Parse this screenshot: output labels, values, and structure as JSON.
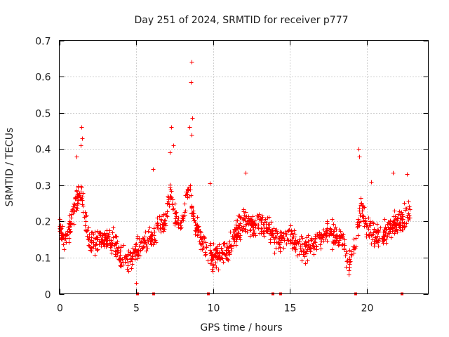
{
  "chart_data": {
    "type": "scatter",
    "title": "Day 251 of 2024, SRMTID for receiver p777",
    "xlabel": "GPS time / hours",
    "ylabel": "SRMTID / TECUs",
    "xlim": [
      0,
      24
    ],
    "ylim": [
      0,
      0.7
    ],
    "xticks": [
      0,
      5,
      10,
      15,
      20
    ],
    "xtick_labels": [
      "0",
      "5",
      "10",
      "15",
      "20"
    ],
    "yticks": [
      0,
      0.1,
      0.2,
      0.3,
      0.4,
      0.5,
      0.6,
      0.7
    ],
    "ytick_labels": [
      "0",
      "0.1",
      "0.2",
      "0.3",
      "0.4",
      "0.5",
      "0.6",
      "0.7"
    ],
    "grid": true,
    "marker": "+",
    "color": "#ff0000",
    "series": [
      {
        "name": "SRMTID",
        "trend": [
          [
            0.0,
            0.19
          ],
          [
            0.3,
            0.15
          ],
          [
            0.6,
            0.17
          ],
          [
            1.0,
            0.25
          ],
          [
            1.4,
            0.28
          ],
          [
            1.7,
            0.2
          ],
          [
            2.0,
            0.14
          ],
          [
            2.5,
            0.15
          ],
          [
            3.0,
            0.15
          ],
          [
            3.5,
            0.14
          ],
          [
            4.0,
            0.11
          ],
          [
            4.4,
            0.09
          ],
          [
            4.8,
            0.11
          ],
          [
            5.2,
            0.13
          ],
          [
            5.8,
            0.15
          ],
          [
            6.3,
            0.17
          ],
          [
            6.8,
            0.19
          ],
          [
            7.2,
            0.28
          ],
          [
            7.6,
            0.2
          ],
          [
            8.0,
            0.2
          ],
          [
            8.4,
            0.3
          ],
          [
            8.8,
            0.2
          ],
          [
            9.2,
            0.15
          ],
          [
            9.6,
            0.11
          ],
          [
            10.0,
            0.1
          ],
          [
            10.5,
            0.11
          ],
          [
            11.0,
            0.12
          ],
          [
            11.5,
            0.17
          ],
          [
            12.0,
            0.2
          ],
          [
            12.5,
            0.19
          ],
          [
            13.0,
            0.19
          ],
          [
            13.5,
            0.18
          ],
          [
            14.0,
            0.16
          ],
          [
            14.5,
            0.15
          ],
          [
            15.0,
            0.16
          ],
          [
            15.5,
            0.14
          ],
          [
            16.0,
            0.12
          ],
          [
            16.5,
            0.14
          ],
          [
            17.0,
            0.16
          ],
          [
            17.5,
            0.17
          ],
          [
            18.0,
            0.17
          ],
          [
            18.5,
            0.14
          ],
          [
            18.8,
            0.08
          ],
          [
            19.2,
            0.14
          ],
          [
            19.6,
            0.24
          ],
          [
            20.0,
            0.18
          ],
          [
            20.5,
            0.16
          ],
          [
            21.0,
            0.16
          ],
          [
            21.5,
            0.19
          ],
          [
            22.0,
            0.2
          ],
          [
            22.5,
            0.21
          ],
          [
            22.8,
            0.22
          ]
        ],
        "spikes": [
          [
            1.45,
            0.46
          ],
          [
            1.5,
            0.43
          ],
          [
            1.4,
            0.41
          ],
          [
            1.1,
            0.38
          ],
          [
            7.3,
            0.46
          ],
          [
            7.4,
            0.41
          ],
          [
            7.2,
            0.39
          ],
          [
            8.58,
            0.64
          ],
          [
            8.55,
            0.585
          ],
          [
            8.65,
            0.485
          ],
          [
            8.6,
            0.44
          ],
          [
            8.45,
            0.46
          ],
          [
            19.45,
            0.4
          ],
          [
            19.5,
            0.38
          ],
          [
            20.3,
            0.31
          ],
          [
            21.7,
            0.335
          ],
          [
            22.6,
            0.33
          ],
          [
            12.1,
            0.335
          ],
          [
            5.0,
            0.03
          ],
          [
            6.1,
            0.345
          ],
          [
            9.8,
            0.305
          ]
        ],
        "zeros": [
          5.1,
          6.15,
          9.7,
          13.9,
          14.4,
          19.3,
          22.3
        ]
      }
    ]
  }
}
